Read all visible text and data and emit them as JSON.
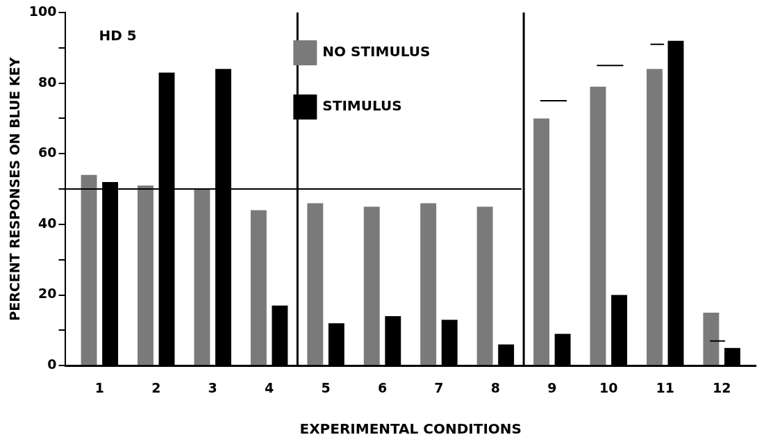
{
  "chart_data": {
    "type": "bar",
    "xlabel": "EXPERIMENTAL CONDITIONS",
    "ylabel": "PERCENT RESPONSES ON BLUE KEY",
    "annotations": [
      "HD 5"
    ],
    "x": [
      1,
      2,
      3,
      4,
      5,
      6,
      7,
      8,
      9,
      10,
      11,
      12
    ],
    "series": [
      {
        "name": "NO STIMULUS",
        "color": "#7a7a7a",
        "values": [
          54,
          51,
          50,
          44,
          46,
          45,
          46,
          45,
          70,
          79,
          84,
          15
        ]
      },
      {
        "name": "STIMULUS",
        "color": "#000000",
        "values": [
          52,
          83,
          84,
          17,
          12,
          14,
          13,
          6,
          9,
          20,
          92,
          5
        ]
      },
      {
        "type": "line",
        "color": "#000000",
        "x": [
          0.4,
          8.45
        ],
        "values": [
          50,
          50
        ]
      },
      {
        "type": "line",
        "color": "#000000",
        "x": [
          8.8,
          9.25
        ],
        "values": [
          75,
          75
        ]
      },
      {
        "type": "line",
        "color": "#000000",
        "x": [
          9.8,
          10.25
        ],
        "values": [
          85,
          85
        ]
      },
      {
        "type": "line",
        "color": "#000000",
        "x": [
          10.75,
          10.97
        ],
        "values": [
          91,
          91
        ]
      },
      {
        "type": "line",
        "color": "#000000",
        "x": [
          11.8,
          12.05
        ],
        "values": [
          7,
          7
        ]
      }
    ],
    "xlim": [
      0.4,
      12.6
    ],
    "xticks": [
      1,
      2,
      3,
      4,
      5,
      6,
      7,
      8,
      9,
      10,
      11,
      12
    ],
    "ylim": [
      0,
      100
    ],
    "yticks": [
      0,
      {
        "value": 10,
        "label": null
      },
      20,
      {
        "value": 30,
        "label": null
      },
      40,
      {
        "value": 50,
        "label": null
      },
      60,
      {
        "value": 70,
        "label": null
      },
      80,
      {
        "value": 90,
        "label": null
      },
      100
    ],
    "ref_lines": [
      {
        "axis": "x",
        "value": 4.5
      },
      {
        "axis": "x",
        "value": 8.5
      }
    ],
    "legend": "top"
  }
}
